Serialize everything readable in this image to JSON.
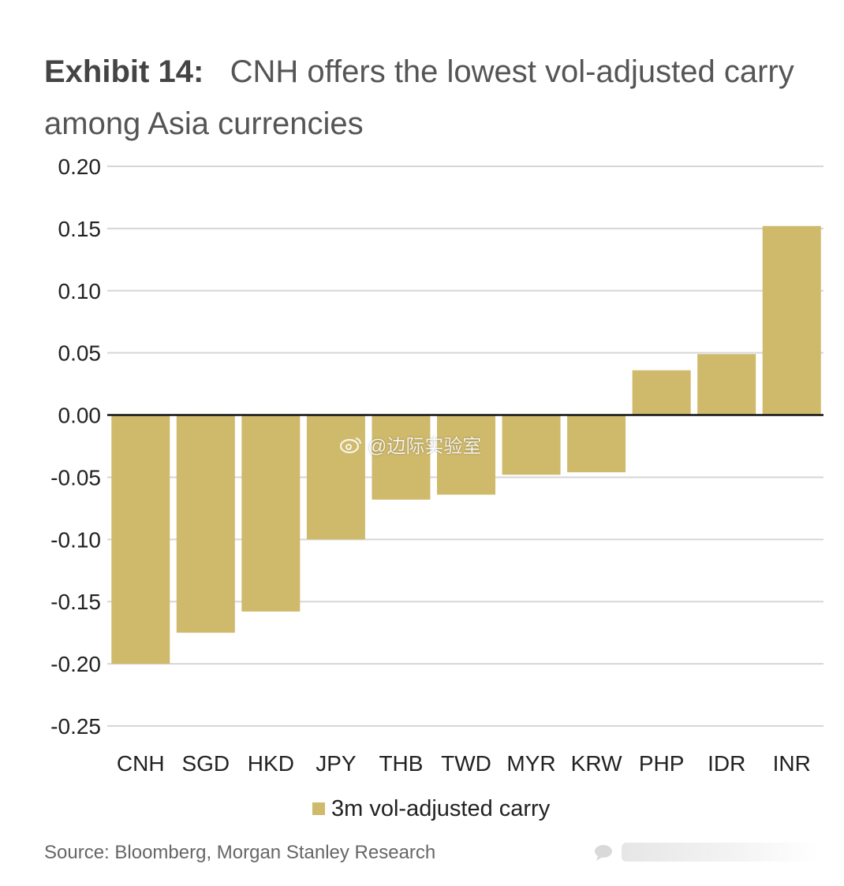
{
  "title": {
    "exhibit": "Exhibit 14:",
    "text": "CNH offers the lowest vol-adjusted carry among Asia currencies"
  },
  "chart_data": {
    "type": "bar",
    "title": "CNH offers the lowest vol-adjusted carry among Asia currencies",
    "xlabel": "",
    "ylabel": "",
    "ylim": [
      -0.25,
      0.2
    ],
    "yticks": [
      0.2,
      0.15,
      0.1,
      0.05,
      0.0,
      -0.05,
      -0.1,
      -0.15,
      -0.2,
      -0.25
    ],
    "ytick_labels": [
      "0.20",
      "0.15",
      "0.10",
      "0.05",
      "0.00",
      "-0.05",
      "-0.10",
      "-0.15",
      "-0.20",
      "-0.25"
    ],
    "categories": [
      "CNH",
      "SGD",
      "HKD",
      "JPY",
      "THB",
      "TWD",
      "MYR",
      "KRW",
      "PHP",
      "IDR",
      "INR"
    ],
    "series": [
      {
        "name": "3m vol-adjusted carry",
        "color": "#cfb96b",
        "values": [
          -0.2,
          -0.175,
          -0.158,
          -0.1,
          -0.068,
          -0.064,
          -0.048,
          -0.046,
          0.036,
          0.049,
          0.152
        ]
      }
    ],
    "grid": true,
    "legend": "bottom-center"
  },
  "source": "Source: Bloomberg, Morgan Stanley Research",
  "watermark": "@边际实验室"
}
